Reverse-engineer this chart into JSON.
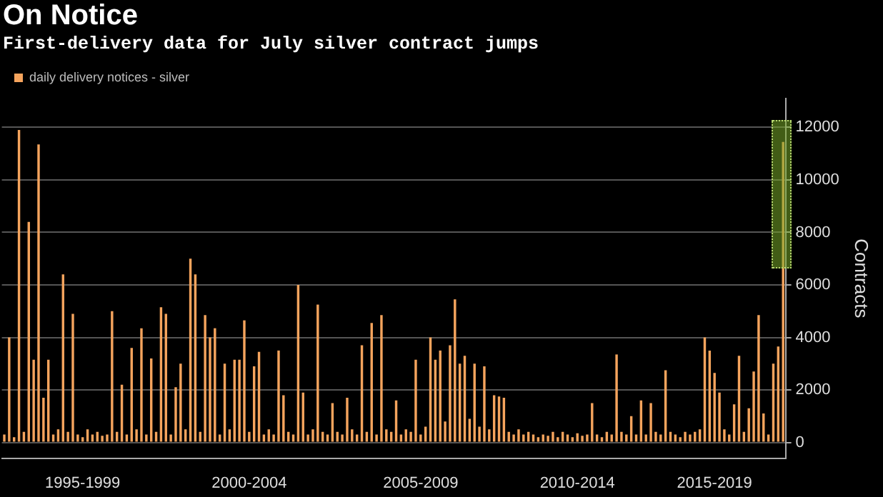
{
  "chart_data": {
    "type": "bar",
    "title": "On Notice",
    "subtitle": "First-delivery data for July silver contract jumps",
    "ylabel": "Contracts",
    "categories": [
      null,
      null,
      null,
      null,
      null,
      null,
      null,
      null,
      null,
      null,
      null,
      null,
      null,
      null,
      null,
      null,
      "1995-1999",
      null,
      null,
      null,
      null,
      null,
      null,
      null,
      null,
      null,
      null,
      null,
      null,
      null,
      null,
      null,
      null,
      null,
      null,
      null,
      null,
      null,
      null,
      null,
      null,
      null,
      null,
      null,
      null,
      null,
      null,
      null,
      null,
      null,
      "2000-2004",
      null,
      null,
      null,
      null,
      null,
      null,
      null,
      null,
      null,
      null,
      null,
      null,
      null,
      null,
      null,
      null,
      null,
      null,
      null,
      null,
      null,
      null,
      null,
      null,
      null,
      null,
      null,
      null,
      null,
      null,
      null,
      null,
      null,
      null,
      "2005-2009",
      null,
      null,
      null,
      null,
      null,
      null,
      null,
      null,
      null,
      null,
      null,
      null,
      null,
      null,
      null,
      null,
      null,
      null,
      null,
      null,
      null,
      null,
      null,
      null,
      null,
      null,
      null,
      null,
      null,
      null,
      null,
      "2010-2014",
      null,
      null,
      null,
      null,
      null,
      null,
      null,
      null,
      null,
      null,
      null,
      null,
      null,
      null,
      null,
      null,
      null,
      null,
      null,
      null,
      null,
      null,
      null,
      null,
      null,
      null,
      null,
      "2015-2019",
      null,
      null,
      null,
      null,
      null,
      null,
      null,
      null,
      null,
      null,
      null,
      null,
      null,
      null
    ],
    "series": [
      {
        "name": "daily delivery notices - silver",
        "color": "#f5a45d",
        "values": [
          300,
          4000,
          200,
          11900,
          400,
          8400,
          3150,
          11350,
          1700,
          3150,
          300,
          500,
          6400,
          400,
          4900,
          300,
          200,
          500,
          300,
          400,
          250,
          300,
          5000,
          400,
          2200,
          300,
          3600,
          500,
          4350,
          300,
          3200,
          400,
          5150,
          4900,
          300,
          2100,
          3000,
          500,
          7000,
          6400,
          400,
          4850,
          4000,
          4350,
          300,
          3000,
          500,
          3150,
          3150,
          4650,
          400,
          2900,
          3450,
          300,
          500,
          300,
          3500,
          1800,
          400,
          300,
          6000,
          1900,
          300,
          500,
          5250,
          400,
          300,
          1500,
          400,
          300,
          1700,
          500,
          300,
          3700,
          400,
          4550,
          300,
          4850,
          500,
          400,
          1600,
          300,
          500,
          400,
          3150,
          300,
          600,
          4000,
          3150,
          3500,
          800,
          3700,
          5450,
          3000,
          3300,
          900,
          3000,
          600,
          2900,
          500,
          1800,
          1750,
          1700,
          400,
          300,
          500,
          300,
          400,
          300,
          200,
          300,
          250,
          400,
          200,
          400,
          300,
          200,
          350,
          250,
          300,
          1500,
          300,
          200,
          400,
          300,
          3350,
          400,
          300,
          1000,
          300,
          1600,
          300,
          1500,
          400,
          300,
          2750,
          400,
          300,
          200,
          400,
          300,
          400,
          500,
          4000,
          3500,
          2650,
          1900,
          500,
          300,
          1450,
          3300,
          400,
          1300,
          2700,
          4850,
          1100,
          300,
          3000,
          3650,
          11450
        ]
      }
    ],
    "ylim": [
      -600,
      13100
    ],
    "yticks": [
      0,
      2000,
      4000,
      6000,
      8000,
      10000,
      12000
    ],
    "grid": "y",
    "legend": "top left"
  }
}
